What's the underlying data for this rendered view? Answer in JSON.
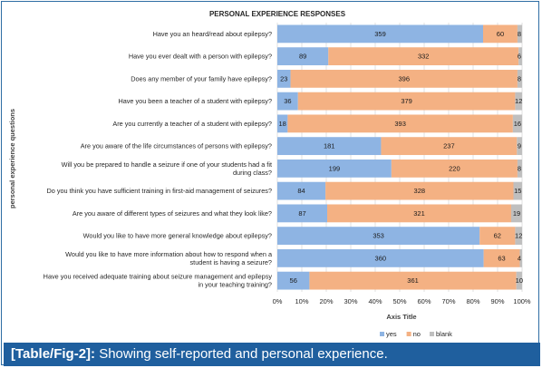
{
  "chart_data": {
    "type": "bar",
    "orientation": "horizontal",
    "stacked": "percent",
    "title": "PERSONAL EXPERIENCE RESPONSES",
    "xlabel": "Axis Title",
    "ylabel": "personal experience questions",
    "xlim": [
      0,
      100
    ],
    "xticks": [
      "0%",
      "10%",
      "20%",
      "30%",
      "40%",
      "50%",
      "60%",
      "70%",
      "80%",
      "90%",
      "100%"
    ],
    "grid": true,
    "legend_position": "bottom",
    "categories": [
      "Have you an heard/read about epilepsy?",
      "Have you ever dealt with a person with epilepsy?",
      "Does any member of your family have epilepsy?",
      "Have you been a teacher of a student with epilepsy?",
      "Are you currently a teacher of a student with epilepsy?",
      "Are you aware of the life circumstances of persons with epilepsy?",
      "Will you be prepared to handle a seizure if one of your students had a fit during class?",
      "Do you think you have sufficient training in first-aid management of seizures?",
      "Are you aware of different types of seizures and what they look like?",
      "Would you like to have more general knowledge about epilepsy?",
      "Would you like to have more information about how to respond when a student is having a seizure?",
      "Have you received adequate training about seizure management and epilepsy in your teaching training?"
    ],
    "category_lines": [
      [
        "Have you an heard/read about epilepsy?"
      ],
      [
        "Have you ever dealt with a person with epilepsy?"
      ],
      [
        "Does any member of your family have epilepsy?"
      ],
      [
        "Have you been a teacher of a student with epilepsy?"
      ],
      [
        "Are you currently a teacher of a student with epilepsy?"
      ],
      [
        "Are you aware of the life circumstances of persons with epilepsy?"
      ],
      [
        "Will you be prepared to handle a seizure if one of your students had a fit",
        "during class?"
      ],
      [
        "Do you think you have sufficient training in first-aid management of seizures?"
      ],
      [
        "Are you aware of different types of seizures and what they look like?"
      ],
      [
        "Would you like to have more general knowledge about epilepsy?"
      ],
      [
        "Would you like to have more information about how to respond when a",
        "student is having a seizure?"
      ],
      [
        "Have you received adequate training about seizure management and epilepsy",
        "in your teaching training?"
      ]
    ],
    "series": [
      {
        "name": "yes",
        "color": "#8eb4e3",
        "values": [
          359,
          89,
          23,
          36,
          18,
          181,
          199,
          84,
          87,
          353,
          360,
          56
        ]
      },
      {
        "name": "no",
        "color": "#f4b183",
        "values": [
          60,
          332,
          396,
          379,
          393,
          237,
          220,
          328,
          321,
          62,
          63,
          361
        ]
      },
      {
        "name": "blank",
        "color": "#bfbfbf",
        "values": [
          8,
          6,
          8,
          12,
          16,
          9,
          8,
          15,
          19,
          12,
          4,
          10
        ]
      }
    ]
  },
  "caption": {
    "label": "[Table/Fig-2]:",
    "text": " Showing self-reported and personal experience."
  }
}
